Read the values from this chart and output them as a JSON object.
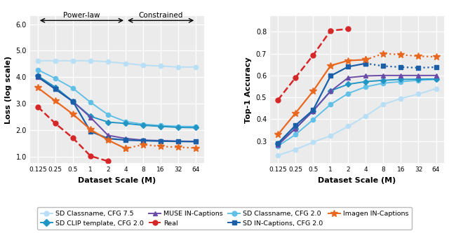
{
  "x_ticks": [
    0.125,
    0.25,
    0.5,
    1,
    2,
    4,
    8,
    16,
    32,
    64
  ],
  "loss": {
    "sd_classname_cfg7p5": {
      "x": [
        0.125,
        0.25,
        0.5,
        1,
        2,
        4,
        8,
        16,
        32,
        64
      ],
      "y": [
        4.62,
        4.62,
        4.62,
        4.62,
        4.58,
        4.52,
        4.45,
        4.42,
        4.38,
        4.38
      ],
      "color": "#b8dff5",
      "marker": "o",
      "linestyle": "-",
      "linewidth": 1.4,
      "markersize": 4.5
    },
    "sd_classname_cfg2p0": {
      "x": [
        0.125,
        0.25,
        0.5,
        1,
        2,
        4,
        8,
        16,
        32,
        64
      ],
      "y": [
        4.28,
        3.95,
        3.58,
        3.05,
        2.58,
        2.32,
        2.22,
        2.17,
        2.14,
        2.13
      ],
      "color": "#60c0e8",
      "marker": "o",
      "linestyle": "-",
      "linewidth": 1.4,
      "markersize": 4.5
    },
    "sd_clip_template_cfg2p0": {
      "x": [
        0.125,
        0.25,
        0.5,
        1,
        2,
        4,
        8,
        16,
        32,
        64
      ],
      "y": [
        4.05,
        3.62,
        3.08,
        2.52,
        2.3,
        2.25,
        2.18,
        2.14,
        2.1,
        2.09
      ],
      "color": "#2196c4",
      "marker": "D",
      "linestyle": "-",
      "linewidth": 1.4,
      "markersize": 4.5
    },
    "sd_incaptions_cfg2p0": {
      "x": [
        0.125,
        0.25,
        0.5,
        1,
        2,
        4,
        8,
        16,
        32,
        64
      ],
      "y": [
        4.02,
        3.55,
        3.08,
        1.95,
        1.68,
        1.62,
        1.6,
        1.58,
        1.57,
        1.56
      ],
      "color": "#1a5fa8",
      "marker": "s",
      "linestyle": "-",
      "linewidth": 1.6,
      "markersize": 4.5
    },
    "muse_incaptions": {
      "x": [
        0.125,
        0.25,
        0.5,
        1,
        2,
        4,
        8,
        16,
        32,
        64
      ],
      "y": [
        4.0,
        3.55,
        3.08,
        2.48,
        1.8,
        1.68,
        1.62,
        1.6,
        1.58,
        1.57
      ],
      "color": "#6a4ca8",
      "marker": "^",
      "linestyle": "-",
      "linewidth": 1.4,
      "markersize": 4.5
    },
    "imagen_incaptions_solid": {
      "x": [
        0.125,
        0.25,
        0.5,
        1,
        2,
        4
      ],
      "y": [
        3.6,
        3.1,
        2.6,
        2.02,
        1.62,
        1.3
      ],
      "color": "#e86820",
      "marker": "*",
      "linestyle": "-",
      "linewidth": 1.6,
      "markersize": 7
    },
    "imagen_incaptions_dotted": {
      "x": [
        4,
        8,
        16,
        32,
        64
      ],
      "y": [
        1.3,
        1.45,
        1.38,
        1.35,
        1.32
      ],
      "color": "#e86820",
      "marker": "*",
      "linestyle": ":",
      "linewidth": 1.6,
      "markersize": 7
    },
    "real": {
      "x": [
        0.125,
        0.25,
        0.5,
        1,
        2
      ],
      "y": [
        2.88,
        2.25,
        1.7,
        1.02,
        0.82
      ],
      "color": "#d62728",
      "marker": "o",
      "linestyle": "--",
      "linewidth": 1.8,
      "markersize": 5
    }
  },
  "acc": {
    "sd_classname_cfg7p5": {
      "x": [
        0.125,
        0.25,
        0.5,
        1,
        2,
        4,
        8,
        16,
        32,
        64
      ],
      "y": [
        0.235,
        0.262,
        0.295,
        0.325,
        0.368,
        0.415,
        0.468,
        0.495,
        0.515,
        0.54
      ],
      "color": "#b8dff5",
      "marker": "o",
      "linestyle": "-",
      "linewidth": 1.4,
      "markersize": 4.5
    },
    "sd_classname_cfg2p0": {
      "x": [
        0.125,
        0.25,
        0.5,
        1,
        2,
        4,
        8,
        16,
        32,
        64
      ],
      "y": [
        0.278,
        0.33,
        0.398,
        0.468,
        0.518,
        0.548,
        0.565,
        0.572,
        0.578,
        0.582
      ],
      "color": "#60c0e8",
      "marker": "o",
      "linestyle": "-",
      "linewidth": 1.4,
      "markersize": 4.5
    },
    "sd_clip_template_cfg2p0": {
      "x": [
        0.125,
        0.25,
        0.5,
        1,
        2,
        4,
        8,
        16,
        32,
        64
      ],
      "y": [
        0.29,
        0.358,
        0.438,
        0.53,
        0.56,
        0.572,
        0.578,
        0.582,
        0.583,
        0.584
      ],
      "color": "#2196c4",
      "marker": "D",
      "linestyle": "-",
      "linewidth": 1.4,
      "markersize": 4.5
    },
    "sd_incaptions_cfg2p0": {
      "x": [
        0.125,
        0.25,
        0.5,
        1,
        2,
        4
      ],
      "y": [
        0.29,
        0.372,
        0.442,
        0.598,
        0.64,
        0.655
      ],
      "color": "#1a5fa8",
      "marker": "s",
      "linestyle": "-",
      "linewidth": 1.6,
      "markersize": 4.5
    },
    "sd_incaptions_cfg2p0_dotted": {
      "x": [
        4,
        8,
        16,
        32,
        64
      ],
      "y": [
        0.655,
        0.643,
        0.638,
        0.635,
        0.638
      ],
      "color": "#1a5fa8",
      "marker": "s",
      "linestyle": ":",
      "linewidth": 1.6,
      "markersize": 4.5
    },
    "muse_incaptions": {
      "x": [
        0.125,
        0.25,
        0.5,
        1,
        2,
        4,
        8,
        16,
        32,
        64
      ],
      "y": [
        0.282,
        0.358,
        0.438,
        0.528,
        0.59,
        0.598,
        0.6,
        0.6,
        0.6,
        0.6
      ],
      "color": "#6a4ca8",
      "marker": "^",
      "linestyle": "-",
      "linewidth": 1.4,
      "markersize": 4.5
    },
    "imagen_incaptions": {
      "x": [
        0.125,
        0.25,
        0.5,
        1,
        2,
        4
      ],
      "y": [
        0.33,
        0.428,
        0.528,
        0.645,
        0.668,
        0.672
      ],
      "color": "#e86820",
      "marker": "*",
      "linestyle": "-",
      "linewidth": 1.6,
      "markersize": 7
    },
    "imagen_incaptions_dotted": {
      "x": [
        4,
        8,
        16,
        32,
        64
      ],
      "y": [
        0.672,
        0.7,
        0.695,
        0.688,
        0.685
      ],
      "color": "#e86820",
      "marker": "*",
      "linestyle": ":",
      "linewidth": 1.6,
      "markersize": 7
    },
    "real": {
      "x": [
        0.125,
        0.25,
        0.5,
        1,
        2
      ],
      "y": [
        0.488,
        0.59,
        0.692,
        0.805,
        0.812
      ],
      "color": "#d62728",
      "marker": "o",
      "linestyle": "--",
      "linewidth": 1.8,
      "markersize": 5
    }
  },
  "loss_ylim": [
    0.75,
    6.3
  ],
  "loss_yticks": [
    1.0,
    2.0,
    3.0,
    4.0,
    5.0,
    6.0
  ],
  "acc_ylim": [
    0.2,
    0.87
  ],
  "acc_yticks": [
    0.3,
    0.4,
    0.5,
    0.6,
    0.7,
    0.8
  ],
  "xlabel": "Dataset Scale (M)",
  "loss_ylabel": "Loss (log scale)",
  "acc_ylabel": "Top-1 Accuracy",
  "bg_color": "#ebebeb",
  "legend_items": [
    {
      "label": "SD Classname, CFG 7.5",
      "color": "#b8dff5",
      "marker": "o",
      "linestyle": "-",
      "markersize": 5
    },
    {
      "label": "SD CLIP template, CFG 2.0",
      "color": "#2196c4",
      "marker": "D",
      "linestyle": "-",
      "markersize": 5
    },
    {
      "label": "MUSE IN-Captions",
      "color": "#6a4ca8",
      "marker": "^",
      "linestyle": "-",
      "markersize": 5
    },
    {
      "label": "Real",
      "color": "#d62728",
      "marker": "o",
      "linestyle": "--",
      "markersize": 5
    },
    {
      "label": "SD Classname, CFG 2.0",
      "color": "#60c0e8",
      "marker": "o",
      "linestyle": "-",
      "markersize": 5
    },
    {
      "label": "SD IN-Captions, CFG 2.0",
      "color": "#1a5fa8",
      "marker": "s",
      "linestyle": "-",
      "markersize": 5
    },
    {
      "label": "Imagen IN-Captions",
      "color": "#e86820",
      "marker": "*",
      "linestyle": "-",
      "markersize": 7
    }
  ]
}
